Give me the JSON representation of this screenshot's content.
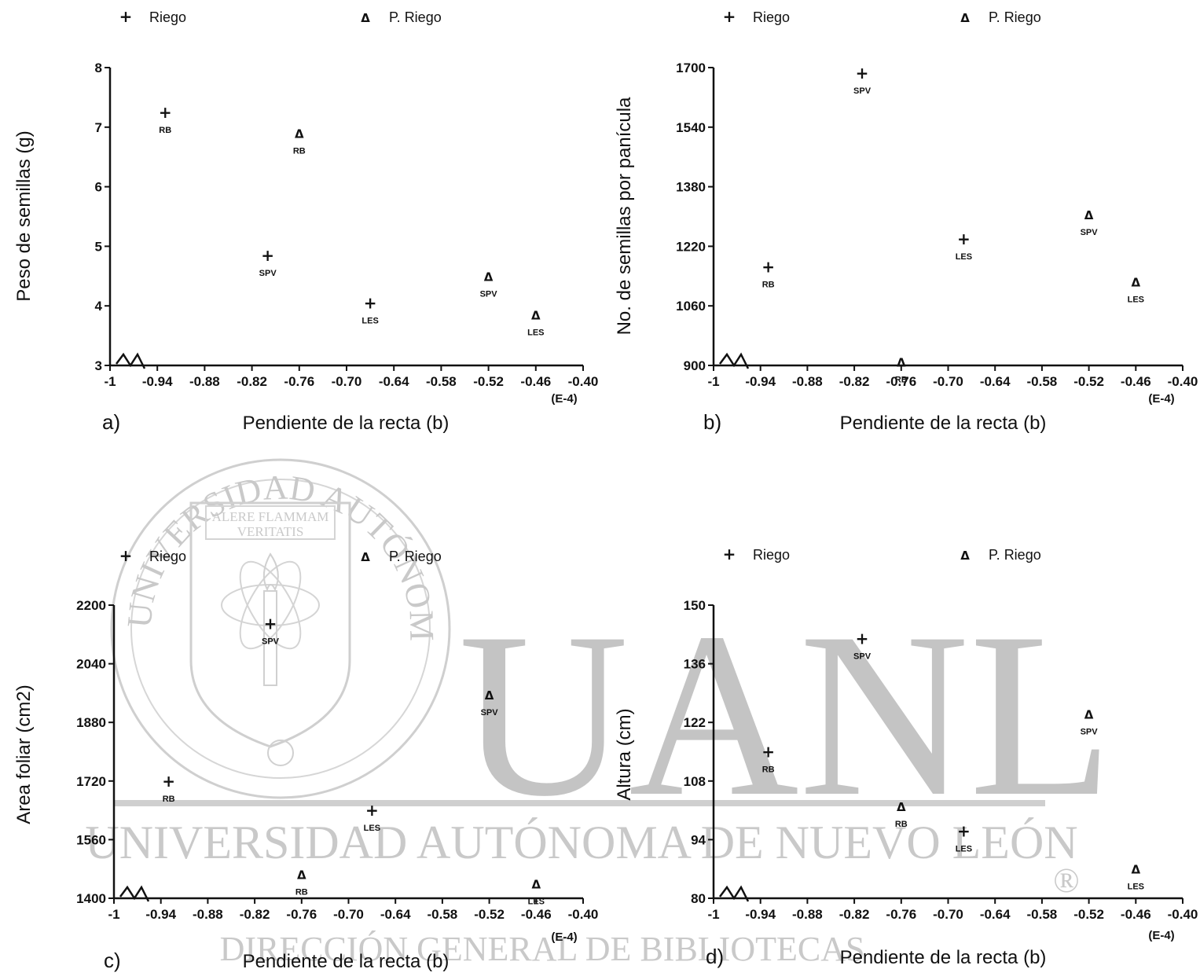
{
  "watermark": {
    "seal_ring_text": "UNIVERSIDAD AUTÓNOMA DE NUEVO LEÓN",
    "seal_motto_line1": "ALERE FLAMMAM",
    "seal_motto_line2": "VERITATIS",
    "big_text": "UANL",
    "university_name": "UNIVERSIDAD AUTÓNOMA DE NUEVO LEÓN",
    "registered_mark": "®",
    "direction_text": "DIRECCIÓN GENERAL DE BIBLIOTECAS"
  },
  "chart_data": [
    {
      "type": "scatter",
      "panel_label": "a)",
      "xlabel": "Pendiente de la recta (b)",
      "ylabel": "Peso de semillas (g)",
      "x_scale_note": "(E-4)",
      "x_ticks": [
        -1,
        -0.94,
        -0.88,
        -0.82,
        -0.76,
        -0.7,
        -0.64,
        -0.58,
        -0.52,
        -0.46,
        -0.4
      ],
      "x_tick_labels": [
        "-1",
        "-0.94",
        "-0.88",
        "-0.82",
        "-0.76",
        "-0.70",
        "-0.64",
        "-0.58",
        "-0.52",
        "-0.46",
        "-0.40"
      ],
      "y_ticks": [
        3,
        4,
        5,
        6,
        7,
        8
      ],
      "y_tick_labels": [
        "3",
        "4",
        "5",
        "6",
        "7",
        "8"
      ],
      "xlim": [
        -1,
        -0.4
      ],
      "ylim": [
        3,
        8
      ],
      "legend": [
        "Riego",
        "P. Riego"
      ],
      "series": [
        {
          "name": "Riego",
          "marker": "+",
          "points": [
            {
              "x": -0.93,
              "y": 7.25,
              "label": "RB"
            },
            {
              "x": -0.8,
              "y": 4.85,
              "label": "SPV"
            },
            {
              "x": -0.67,
              "y": 4.05,
              "label": "LES"
            }
          ]
        },
        {
          "name": "P. Riego",
          "marker": "Δ",
          "points": [
            {
              "x": -0.76,
              "y": 6.9,
              "label": "RB"
            },
            {
              "x": -0.52,
              "y": 4.5,
              "label": "SPV"
            },
            {
              "x": -0.46,
              "y": 3.85,
              "label": "LES"
            }
          ]
        }
      ]
    },
    {
      "type": "scatter",
      "panel_label": "b)",
      "xlabel": "Pendiente de la recta (b)",
      "ylabel": "No. de semillas por panícula",
      "x_scale_note": "(E-4)",
      "x_ticks": [
        -1,
        -0.94,
        -0.88,
        -0.82,
        -0.76,
        -0.7,
        -0.64,
        -0.58,
        -0.52,
        -0.46,
        -0.4
      ],
      "x_tick_labels": [
        "-1",
        "-0.94",
        "-0.88",
        "-0.82",
        "-0.76",
        "-0.70",
        "-0.64",
        "-0.58",
        "-0.52",
        "-0.46",
        "-0.40"
      ],
      "y_ticks": [
        900,
        1060,
        1220,
        1380,
        1540,
        1700
      ],
      "y_tick_labels": [
        "900",
        "1060",
        "1220",
        "1380",
        "1540",
        "1700"
      ],
      "xlim": [
        -1,
        -0.4
      ],
      "ylim": [
        900,
        1700
      ],
      "legend": [
        "Riego",
        "P. Riego"
      ],
      "series": [
        {
          "name": "Riego",
          "marker": "+",
          "points": [
            {
              "x": -0.93,
              "y": 1165,
              "label": "RB"
            },
            {
              "x": -0.81,
              "y": 1685,
              "label": "SPV"
            },
            {
              "x": -0.68,
              "y": 1240,
              "label": "LES"
            }
          ]
        },
        {
          "name": "P. Riego",
          "marker": "Δ",
          "points": [
            {
              "x": -0.76,
              "y": 910,
              "label": "RB"
            },
            {
              "x": -0.52,
              "y": 1305,
              "label": "SPV"
            },
            {
              "x": -0.46,
              "y": 1125,
              "label": "LES"
            }
          ]
        }
      ]
    },
    {
      "type": "scatter",
      "panel_label": "c)",
      "xlabel": "Pendiente de la recta (b)",
      "ylabel": "Area foliar (cm2)",
      "x_scale_note": "(E-4)",
      "x_ticks": [
        -1,
        -0.94,
        -0.88,
        -0.82,
        -0.76,
        -0.7,
        -0.64,
        -0.58,
        -0.52,
        -0.46,
        -0.4
      ],
      "x_tick_labels": [
        "-1",
        "-0.94",
        "-0.88",
        "-0.82",
        "-0.76",
        "-0.70",
        "-0.64",
        "-0.58",
        "-0.52",
        "-0.46",
        "-0.40"
      ],
      "y_ticks": [
        1400,
        1560,
        1720,
        1880,
        2040,
        2200
      ],
      "y_tick_labels": [
        "1400",
        "1560",
        "1720",
        "1880",
        "2040",
        "2200"
      ],
      "xlim": [
        -1,
        -0.4
      ],
      "ylim": [
        1400,
        2200
      ],
      "legend": [
        "Riego",
        "P. Riego"
      ],
      "series": [
        {
          "name": "Riego",
          "marker": "+",
          "points": [
            {
              "x": -0.93,
              "y": 1720,
              "label": "RB"
            },
            {
              "x": -0.8,
              "y": 2150,
              "label": "SPV"
            },
            {
              "x": -0.67,
              "y": 1640,
              "label": "LES"
            }
          ]
        },
        {
          "name": "P. Riego",
          "marker": "Δ",
          "points": [
            {
              "x": -0.76,
              "y": 1465,
              "label": "RB"
            },
            {
              "x": -0.52,
              "y": 1955,
              "label": "SPV"
            },
            {
              "x": -0.46,
              "y": 1440,
              "label": "LES"
            }
          ]
        }
      ]
    },
    {
      "type": "scatter",
      "panel_label": "d)",
      "xlabel": "Pendiente de la recta (b)",
      "ylabel": "Altura (cm)",
      "x_scale_note": "(E-4)",
      "x_ticks": [
        -1,
        -0.94,
        -0.88,
        -0.82,
        -0.76,
        -0.7,
        -0.64,
        -0.58,
        -0.52,
        -0.46,
        -0.4
      ],
      "x_tick_labels": [
        "-1",
        "-0.94",
        "-0.88",
        "-0.82",
        "-0.76",
        "-0.70",
        "-0.64",
        "-0.58",
        "-0.52",
        "-0.46",
        "-0.40"
      ],
      "y_ticks": [
        80,
        94,
        108,
        122,
        136,
        150
      ],
      "y_tick_labels": [
        "80",
        "94",
        "108",
        "122",
        "136",
        "150"
      ],
      "xlim": [
        -1,
        -0.4
      ],
      "ylim": [
        80,
        150
      ],
      "legend": [
        "Riego",
        "P. Riego"
      ],
      "series": [
        {
          "name": "Riego",
          "marker": "+",
          "points": [
            {
              "x": -0.93,
              "y": 115,
              "label": "RB"
            },
            {
              "x": -0.81,
              "y": 142,
              "label": "SPV"
            },
            {
              "x": -0.68,
              "y": 96,
              "label": "LES"
            }
          ]
        },
        {
          "name": "P. Riego",
          "marker": "Δ",
          "points": [
            {
              "x": -0.76,
              "y": 102,
              "label": "RB"
            },
            {
              "x": -0.52,
              "y": 124,
              "label": "SPV"
            },
            {
              "x": -0.46,
              "y": 87,
              "label": "LES"
            }
          ]
        }
      ]
    }
  ]
}
